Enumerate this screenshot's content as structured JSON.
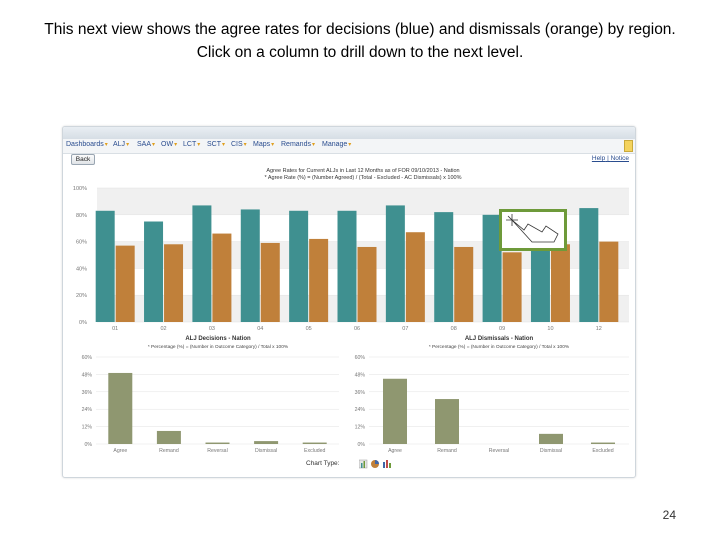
{
  "caption": "This next view shows the agree rates for decisions (blue) and dismissals (orange) by region. Click on a column to drill down to the next level.",
  "page_number": "24",
  "menu": [
    {
      "label": "Dashboards"
    },
    {
      "label": "ALJ"
    },
    {
      "label": "SAA"
    },
    {
      "label": "OW"
    },
    {
      "label": "LCT"
    },
    {
      "label": "SCT"
    },
    {
      "label": "CIS"
    },
    {
      "label": "Maps"
    },
    {
      "label": "Remands"
    },
    {
      "label": "Manage"
    }
  ],
  "toolbar": {
    "back_label": "Back",
    "help_label": "Help",
    "notice_label": "Notice"
  },
  "main_chart": {
    "title": "Agree Rates for Current ALJs in Last 12 Months as of FOR 09/10/2013 - Nation",
    "subtitle": "* Agree Rate (%) = (Number Agreed) / (Total - Excluded - AC Dismissals) x 100%"
  },
  "lower_left_chart": {
    "title": "ALJ Decisions - Nation",
    "subtitle": "* Percentage (%) = (Number in Outcome Category) / Total x 100%"
  },
  "lower_right_chart": {
    "title": "ALJ Dismissals - Nation",
    "subtitle": "* Percentage (%) = (Number in Outcome Category) / Total x 100%"
  },
  "chart_type_label": "Chart Type:",
  "colors": {
    "decisions": "#3f9090",
    "dismissals": "#c0803a",
    "outcome": "#8f9770",
    "menu_arrow": "#e0a020",
    "hand_border": "#6e9a3a"
  },
  "chart_data": [
    {
      "type": "bar",
      "title": "Agree Rates for Current ALJs in Last 12 Months as of FOR 09/10/2013 - Nation",
      "categories": [
        "01",
        "02",
        "03",
        "04",
        "05",
        "06",
        "07",
        "08",
        "09",
        "10",
        "12"
      ],
      "series": [
        {
          "values": [
            83,
            75,
            87,
            84,
            83,
            83,
            87,
            82,
            80,
            80,
            85
          ]
        },
        {
          "values": [
            57,
            58,
            66,
            59,
            62,
            56,
            67,
            56,
            52,
            58,
            60
          ]
        }
      ],
      "ylim": [
        0,
        100
      ],
      "yticks": [
        "0%",
        "20%",
        "40%",
        "60%",
        "80%",
        "100%"
      ],
      "grid": true
    },
    {
      "type": "bar",
      "title": "ALJ Decisions - Nation",
      "categories": [
        "Agree",
        "Remand",
        "Reversal",
        "Dismissal",
        "Excluded"
      ],
      "values": [
        49,
        9,
        1,
        2,
        1
      ],
      "ylim": [
        0,
        60
      ],
      "yticks": [
        "0%",
        "12%",
        "24%",
        "36%",
        "48%",
        "60%"
      ]
    },
    {
      "type": "bar",
      "title": "ALJ Dismissals - Nation",
      "categories": [
        "Agree",
        "Remand",
        "Reversal",
        "Dismissal",
        "Excluded"
      ],
      "values": [
        45,
        31,
        0,
        7,
        1
      ],
      "ylim": [
        0,
        60
      ],
      "yticks": [
        "0%",
        "12%",
        "24%",
        "36%",
        "48%",
        "60%"
      ]
    }
  ]
}
